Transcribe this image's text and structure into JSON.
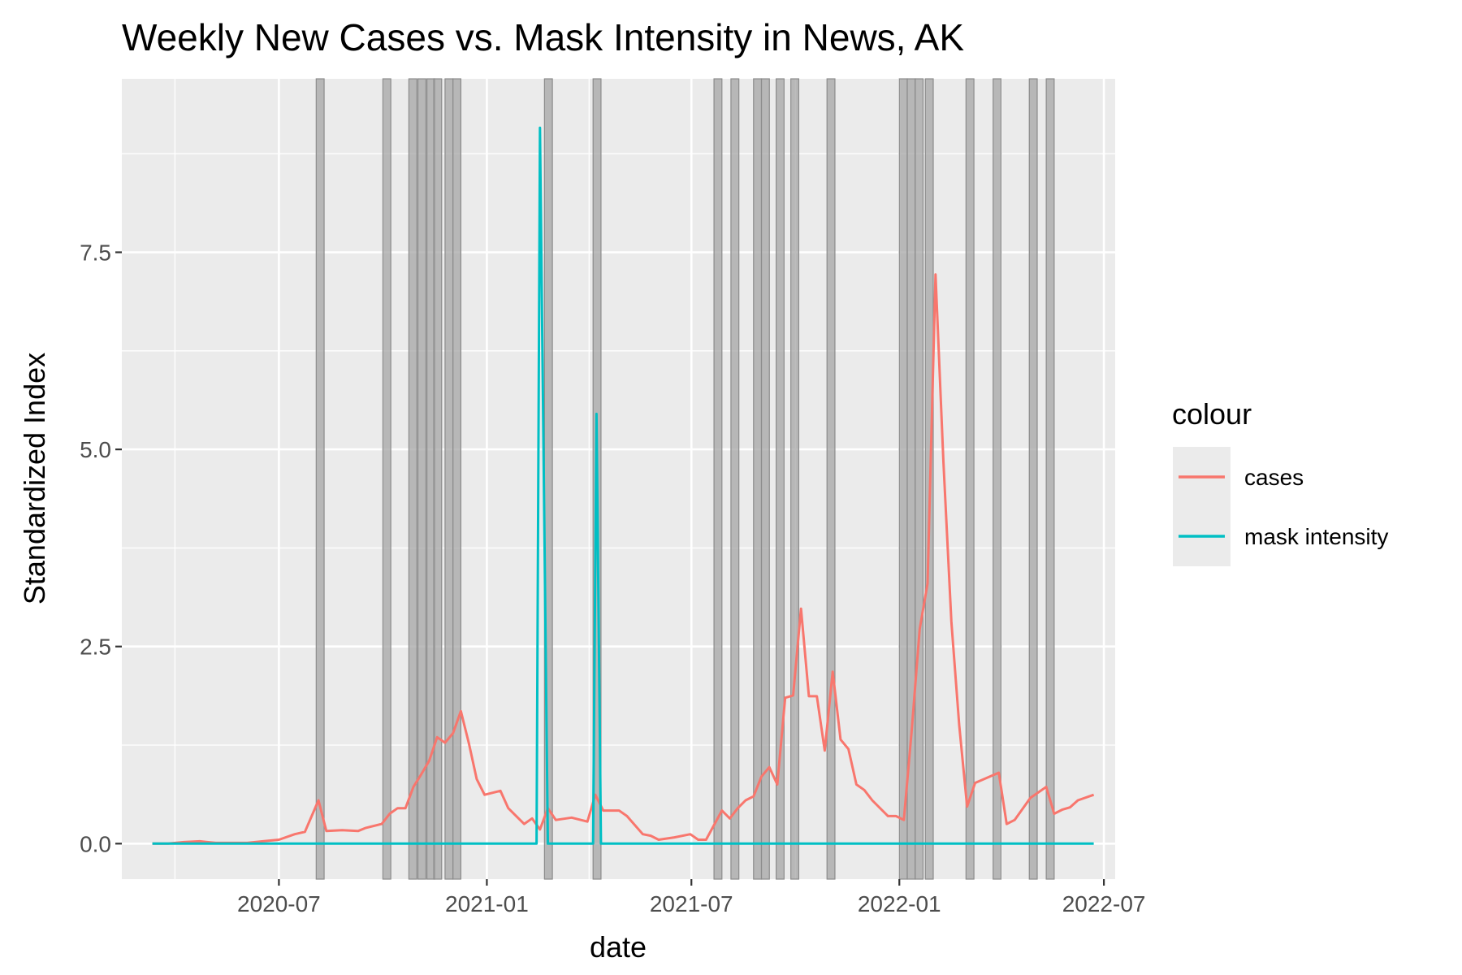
{
  "chart_data": {
    "type": "line",
    "title": "Weekly New Cases vs. Mask Intensity in News, AK",
    "xlabel": "date",
    "ylabel": "Standardized Index",
    "x_ticks": [
      "2020-07",
      "2021-01",
      "2021-07",
      "2022-01",
      "2022-07"
    ],
    "y_ticks": [
      "0.0",
      "2.5",
      "5.0",
      "7.5"
    ],
    "x_range": [
      "2020-02-13",
      "2022-07-11"
    ],
    "ylim": [
      -0.45,
      9.7
    ],
    "grid": true,
    "legend": {
      "title": "colour",
      "placement": "right",
      "entries": [
        {
          "label": "cases",
          "color": "#F8766D"
        },
        {
          "label": "mask intensity",
          "color": "#00BFC4"
        }
      ]
    },
    "highlight_weeks": [
      "2020-08-03",
      "2020-10-01",
      "2020-10-24",
      "2020-11-01",
      "2020-11-09",
      "2020-11-15",
      "2020-11-25",
      "2020-12-02",
      "2021-02-21",
      "2021-04-05",
      "2021-07-21",
      "2021-08-05",
      "2021-08-25",
      "2021-09-01",
      "2021-09-14",
      "2021-09-27",
      "2021-10-29",
      "2022-01-01",
      "2022-01-08",
      "2022-01-15",
      "2022-01-24",
      "2022-03-01",
      "2022-03-25",
      "2022-04-26",
      "2022-05-11"
    ],
    "series": [
      {
        "name": "cases",
        "color": "#F8766D",
        "points": [
          [
            "2020-03-11",
            0.0
          ],
          [
            "2020-03-25",
            0.0
          ],
          [
            "2020-04-08",
            0.02
          ],
          [
            "2020-04-22",
            0.03
          ],
          [
            "2020-05-06",
            0.01
          ],
          [
            "2020-05-20",
            0.01
          ],
          [
            "2020-06-03",
            0.01
          ],
          [
            "2020-06-17",
            0.03
          ],
          [
            "2020-07-01",
            0.05
          ],
          [
            "2020-07-15",
            0.12
          ],
          [
            "2020-07-24",
            0.15
          ],
          [
            "2020-08-05",
            0.55
          ],
          [
            "2020-08-12",
            0.16
          ],
          [
            "2020-08-26",
            0.17
          ],
          [
            "2020-09-09",
            0.16
          ],
          [
            "2020-09-16",
            0.2
          ],
          [
            "2020-09-30",
            0.25
          ],
          [
            "2020-10-07",
            0.38
          ],
          [
            "2020-10-14",
            0.45
          ],
          [
            "2020-10-21",
            0.45
          ],
          [
            "2020-10-28",
            0.72
          ],
          [
            "2020-11-04",
            0.88
          ],
          [
            "2020-11-11",
            1.05
          ],
          [
            "2020-11-18",
            1.35
          ],
          [
            "2020-11-25",
            1.28
          ],
          [
            "2020-12-02",
            1.4
          ],
          [
            "2020-12-09",
            1.68
          ],
          [
            "2020-12-16",
            1.28
          ],
          [
            "2020-12-23",
            0.82
          ],
          [
            "2020-12-30",
            0.62
          ],
          [
            "2021-01-13",
            0.67
          ],
          [
            "2021-01-20",
            0.45
          ],
          [
            "2021-02-03",
            0.25
          ],
          [
            "2021-02-10",
            0.32
          ],
          [
            "2021-02-17",
            0.18
          ],
          [
            "2021-02-24",
            0.45
          ],
          [
            "2021-03-03",
            0.3
          ],
          [
            "2021-03-17",
            0.33
          ],
          [
            "2021-03-31",
            0.28
          ],
          [
            "2021-04-07",
            0.62
          ],
          [
            "2021-04-14",
            0.42
          ],
          [
            "2021-04-28",
            0.42
          ],
          [
            "2021-05-05",
            0.35
          ],
          [
            "2021-05-19",
            0.12
          ],
          [
            "2021-05-26",
            0.1
          ],
          [
            "2021-06-02",
            0.05
          ],
          [
            "2021-06-16",
            0.08
          ],
          [
            "2021-06-30",
            0.12
          ],
          [
            "2021-07-07",
            0.05
          ],
          [
            "2021-07-14",
            0.05
          ],
          [
            "2021-07-28",
            0.42
          ],
          [
            "2021-08-04",
            0.32
          ],
          [
            "2021-08-11",
            0.45
          ],
          [
            "2021-08-18",
            0.55
          ],
          [
            "2021-08-25",
            0.6
          ],
          [
            "2021-09-01",
            0.85
          ],
          [
            "2021-09-08",
            0.97
          ],
          [
            "2021-09-15",
            0.75
          ],
          [
            "2021-09-22",
            1.85
          ],
          [
            "2021-09-29",
            1.88
          ],
          [
            "2021-10-06",
            2.98
          ],
          [
            "2021-10-13",
            1.87
          ],
          [
            "2021-10-20",
            1.87
          ],
          [
            "2021-10-27",
            1.18
          ],
          [
            "2021-11-03",
            2.18
          ],
          [
            "2021-11-10",
            1.32
          ],
          [
            "2021-11-17",
            1.2
          ],
          [
            "2021-11-24",
            0.75
          ],
          [
            "2021-12-01",
            0.68
          ],
          [
            "2021-12-08",
            0.55
          ],
          [
            "2021-12-22",
            0.35
          ],
          [
            "2021-12-29",
            0.35
          ],
          [
            "2022-01-05",
            0.3
          ],
          [
            "2022-01-12",
            1.45
          ],
          [
            "2022-01-19",
            2.72
          ],
          [
            "2022-01-26",
            3.3
          ],
          [
            "2022-02-02",
            7.22
          ],
          [
            "2022-02-09",
            4.85
          ],
          [
            "2022-02-16",
            2.82
          ],
          [
            "2022-02-23",
            1.5
          ],
          [
            "2022-03-02",
            0.47
          ],
          [
            "2022-03-09",
            0.77
          ],
          [
            "2022-03-30",
            0.9
          ],
          [
            "2022-04-06",
            0.25
          ],
          [
            "2022-04-13",
            0.3
          ],
          [
            "2022-04-27",
            0.58
          ],
          [
            "2022-05-11",
            0.72
          ],
          [
            "2022-05-18",
            0.38
          ],
          [
            "2022-05-25",
            0.43
          ],
          [
            "2022-06-01",
            0.46
          ],
          [
            "2022-06-08",
            0.55
          ],
          [
            "2022-06-22",
            0.62
          ]
        ]
      },
      {
        "name": "mask intensity",
        "color": "#00BFC4",
        "points": [
          [
            "2020-03-11",
            0.0
          ],
          [
            "2021-02-14",
            0.0
          ],
          [
            "2021-02-17",
            9.08
          ],
          [
            "2021-02-24",
            0.0
          ],
          [
            "2021-04-05",
            0.0
          ],
          [
            "2021-04-08",
            5.45
          ],
          [
            "2021-04-12",
            0.0
          ],
          [
            "2022-06-22",
            0.0
          ]
        ]
      }
    ]
  }
}
